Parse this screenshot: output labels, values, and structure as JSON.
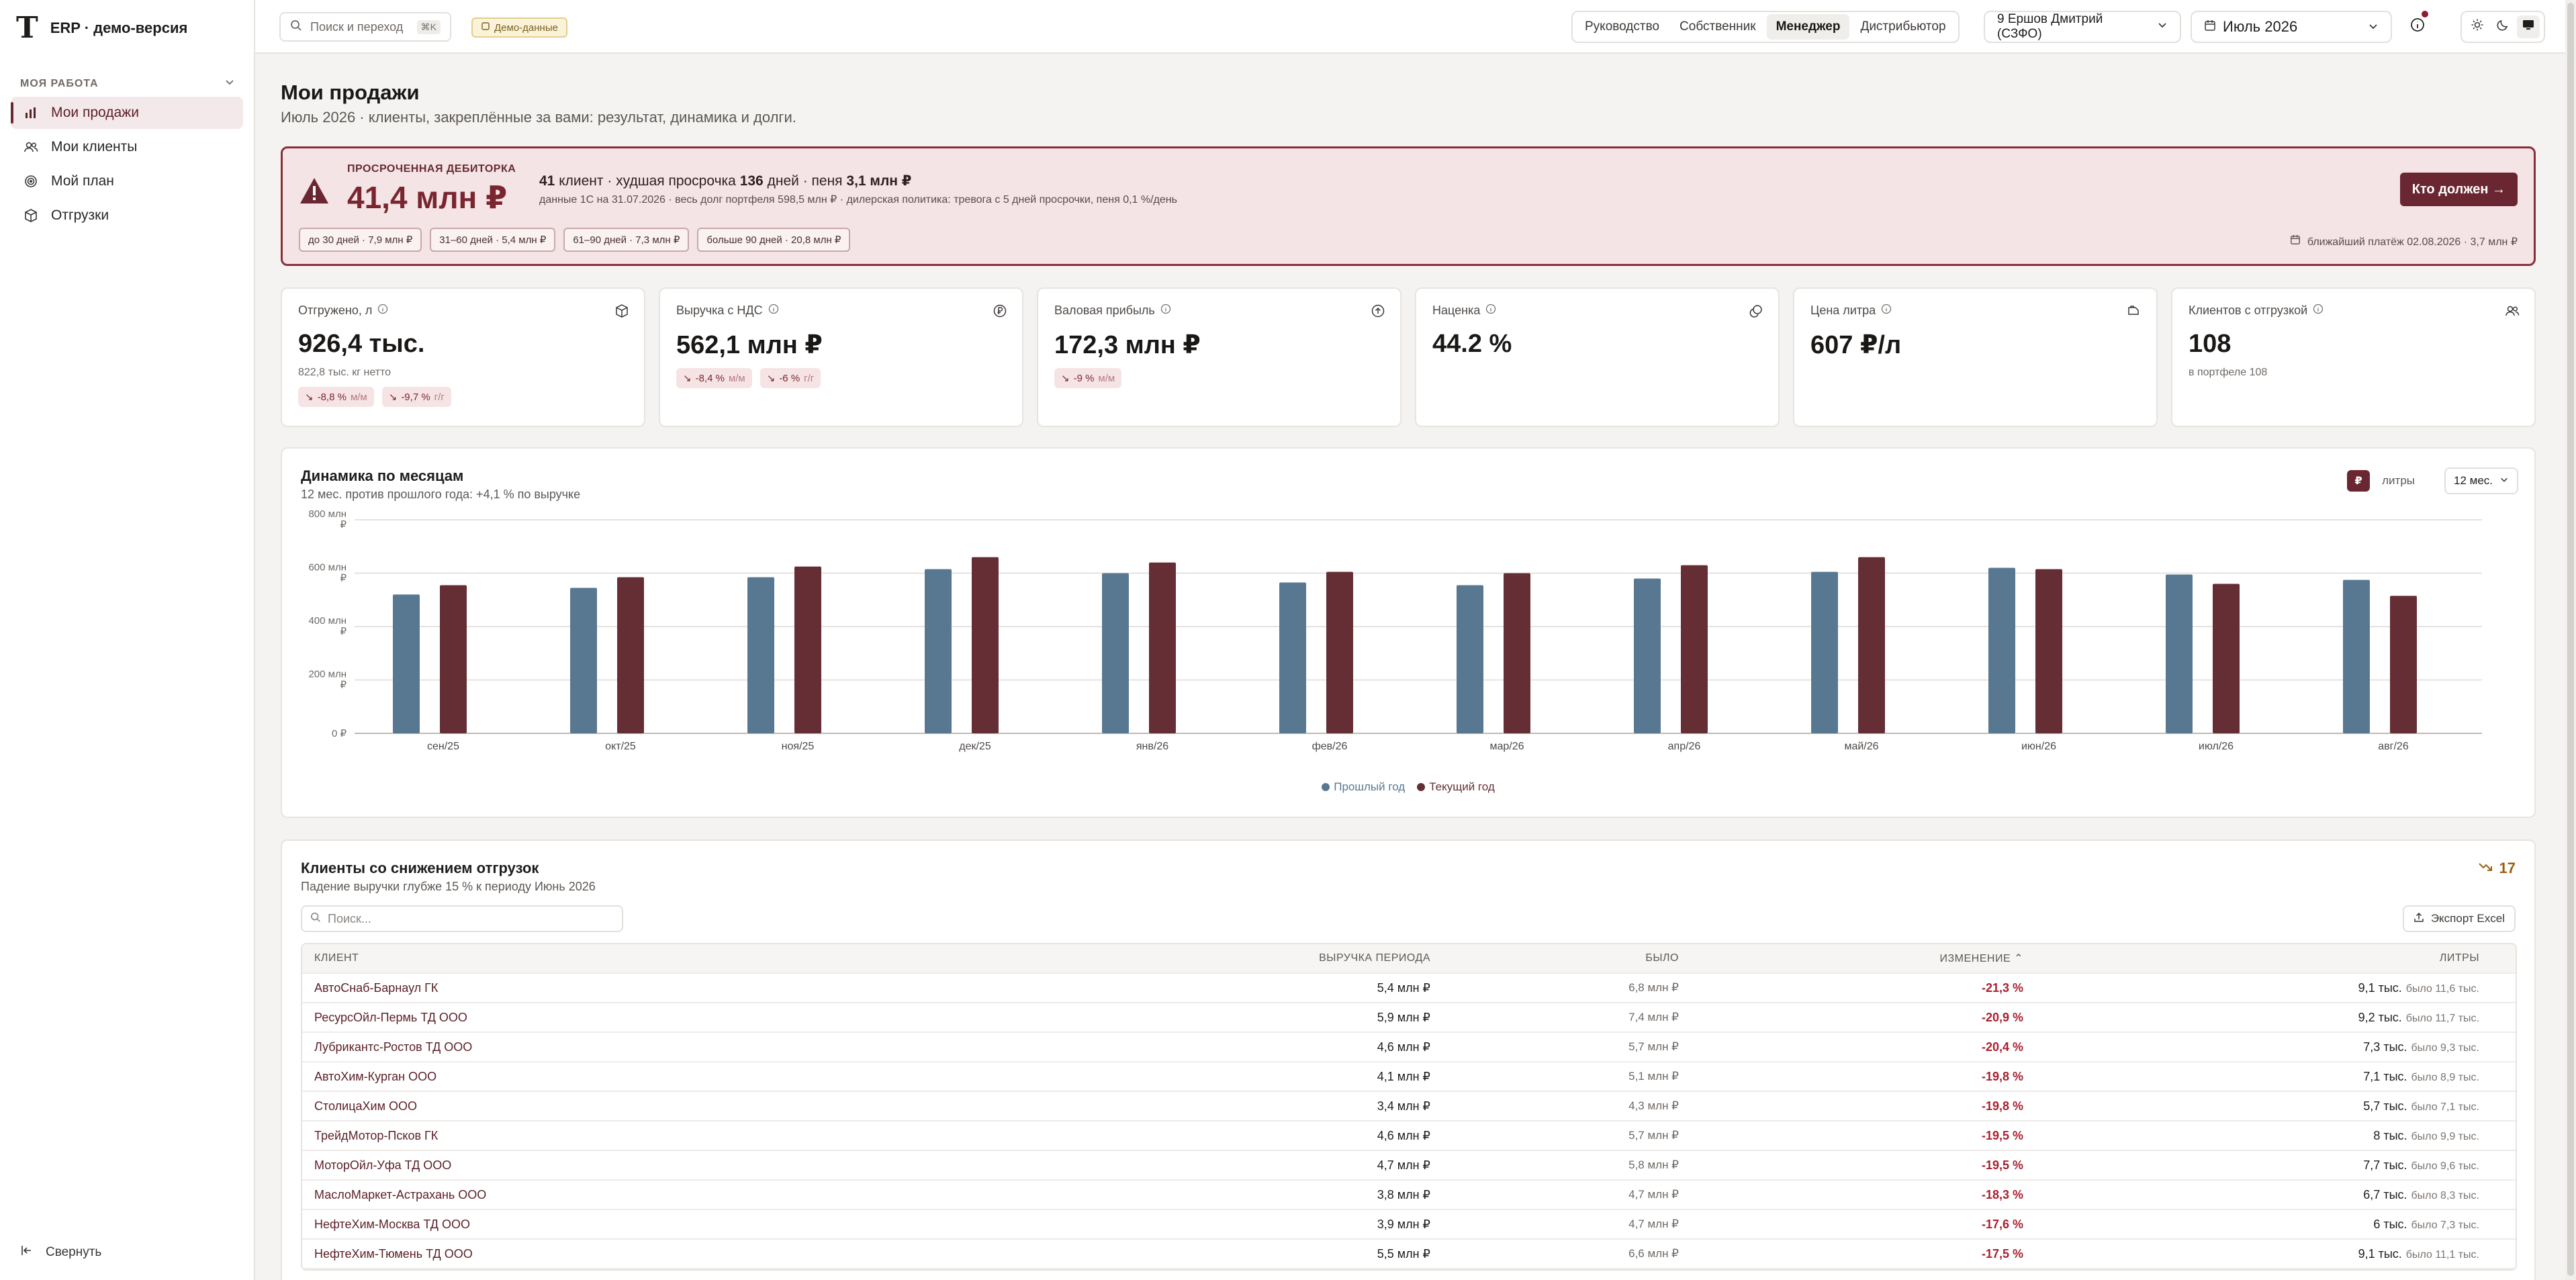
{
  "app": {
    "logo": "T",
    "title": "ERP · демо-версия"
  },
  "sidebar": {
    "section": "МОЯ РАБОТА",
    "items": [
      {
        "label": "Мои продажи",
        "icon": "bar-chart-icon"
      },
      {
        "label": "Мои клиенты",
        "icon": "users-icon"
      },
      {
        "label": "Мой план",
        "icon": "target-icon"
      },
      {
        "label": "Отгрузки",
        "icon": "box-icon"
      }
    ],
    "collapse": "Свернуть"
  },
  "topbar": {
    "search_placeholder": "Поиск и переход",
    "search_kbd": "⌘K",
    "demo_badge": "Демо-данные",
    "roles": [
      "Руководство",
      "Собственник",
      "Менеджер",
      "Дистрибьютор"
    ],
    "active_role": "Менеджер",
    "user": "9 Ершов Дмитрий (СЗФО)",
    "period": "Июль 2026"
  },
  "page": {
    "title": "Мои продажи",
    "subtitle": "Июль 2026 · клиенты, закреплённые за вами: результат, динамика и долги."
  },
  "alert": {
    "label": "ПРОСРОЧЕННАЯ ДЕБИТОРКА",
    "amount": "41,4 млн ₽",
    "clients_num": "41",
    "clients_txt": "клиент · худшая просрочка",
    "days_num": "136",
    "days_txt": "дней · пеня",
    "penalty": "3,1 млн ₽",
    "note": "данные 1С на 31.07.2026 · весь долг портфеля 598,5 млн ₽ · дилерская политика: тревога с 5 дней просрочки, пеня 0,1 %/день",
    "button": "Кто должен →",
    "buckets": [
      "до 30 дней · 7,9 млн ₽",
      "31–60 дней · 5,4 млн ₽",
      "61–90 дней · 7,3 млн ₽",
      "больше 90 дней · 20,8 млн ₽"
    ],
    "next_payment": "ближайший платёж 02.08.2026 · 3,7 млн ₽"
  },
  "kpis": [
    {
      "label": "Отгружено, л",
      "value": "926,4 тыс.",
      "sub": "822,8 тыс. кг нетто",
      "icon": "package-icon",
      "deltas": [
        {
          "v": "-8,8 %",
          "u": "м/м"
        },
        {
          "v": "-9,7 %",
          "u": "г/г"
        }
      ]
    },
    {
      "label": "Выручка с НДС",
      "value": "562,1 млн ₽",
      "sub": "",
      "icon": "currency-icon",
      "deltas": [
        {
          "v": "-8,4 %",
          "u": "м/м"
        },
        {
          "v": "-6 %",
          "u": "г/г"
        }
      ]
    },
    {
      "label": "Валовая прибыль",
      "value": "172,3 млн ₽",
      "sub": "",
      "icon": "arrow-up-circle-icon",
      "deltas": [
        {
          "v": "-9 %",
          "u": "м/м"
        }
      ]
    },
    {
      "label": "Наценка",
      "value": "44.2 %",
      "sub": "",
      "icon": "coins-icon",
      "deltas": []
    },
    {
      "label": "Цена литра",
      "value": "607 ₽/л",
      "sub": "",
      "icon": "fuel-icon",
      "deltas": []
    },
    {
      "label": "Клиентов с отгрузкой",
      "value": "108",
      "sub": "в портфеле 108",
      "icon": "users-icon",
      "deltas": []
    }
  ],
  "chart_section": {
    "title": "Динамика по месяцам",
    "subtitle": "12 мес. против прошлого года: +4,1 % по выручке",
    "toggle_currency": "₽",
    "toggle_liters": "литры",
    "period": "12 мес."
  },
  "chart_data": {
    "type": "bar",
    "categories": [
      "сен/25",
      "окт/25",
      "ноя/25",
      "дек/25",
      "янв/26",
      "фев/26",
      "мар/26",
      "апр/26",
      "май/26",
      "июн/26",
      "июл/26",
      "авг/26"
    ],
    "series": [
      {
        "name": "Прошлый год",
        "color": "#587892",
        "values": [
          520,
          545,
          585,
          615,
          600,
          565,
          555,
          580,
          605,
          620,
          595,
          575
        ]
      },
      {
        "name": "Текущий год",
        "color": "#652e35",
        "values": [
          555,
          585,
          625,
          660,
          640,
          605,
          600,
          630,
          660,
          615,
          560,
          515
        ]
      }
    ],
    "ylim": [
      0,
      800
    ],
    "yticks": [
      "0 ₽",
      "200 млн ₽",
      "400 млн ₽",
      "600 млн ₽",
      "800 млн ₽"
    ],
    "grid": true,
    "legend": "bottom"
  },
  "table_section": {
    "title": "Клиенты со снижением отгрузок",
    "subtitle": "Падение выручки глубже 15 % к периоду Июнь 2026",
    "count": "17",
    "search_placeholder": "Поиск...",
    "export": "Экспорт Excel",
    "headers": [
      "КЛИЕНТ",
      "ВЫРУЧКА ПЕРИОДА",
      "БЫЛО",
      "ИЗМЕНЕНИЕ",
      "ЛИТРЫ"
    ],
    "rows": [
      [
        "АвтоСнаб-Барнаул ГК",
        "5,4 млн ₽",
        "6,8 млн ₽",
        "-21,3 %",
        "9,1 тыс.",
        "было 11,6 тыс."
      ],
      [
        "РесурсОйл-Пермь ТД ООО",
        "5,9 млн ₽",
        "7,4 млн ₽",
        "-20,9 %",
        "9,2 тыс.",
        "было 11,7 тыс."
      ],
      [
        "Лубрикантс-Ростов ТД ООО",
        "4,6 млн ₽",
        "5,7 млн ₽",
        "-20,4 %",
        "7,3 тыс.",
        "было 9,3 тыс."
      ],
      [
        "АвтоХим-Курган ООО",
        "4,1 млн ₽",
        "5,1 млн ₽",
        "-19,8 %",
        "7,1 тыс.",
        "было 8,9 тыс."
      ],
      [
        "СтолицаХим ООО",
        "3,4 млн ₽",
        "4,3 млн ₽",
        "-19,8 %",
        "5,7 тыс.",
        "было 7,1 тыс."
      ],
      [
        "ТрейдМотор-Псков ГК",
        "4,6 млн ₽",
        "5,7 млн ₽",
        "-19,5 %",
        "8 тыс.",
        "было 9,9 тыс."
      ],
      [
        "МоторОйл-Уфа ТД ООО",
        "4,7 млн ₽",
        "5,8 млн ₽",
        "-19,5 %",
        "7,7 тыс.",
        "было 9,6 тыс."
      ],
      [
        "МаслоМаркет-Астрахань ООО",
        "3,8 млн ₽",
        "4,7 млн ₽",
        "-18,3 %",
        "6,7 тыс.",
        "было 8,3 тыс."
      ],
      [
        "НефтеХим-Москва ТД ООО",
        "3,9 млн ₽",
        "4,7 млн ₽",
        "-17,6 %",
        "6 тыс.",
        "было 7,3 тыс."
      ],
      [
        "НефтеХим-Тюмень ТД ООО",
        "5,5 млн ₽",
        "6,6 млн ₽",
        "-17,5 %",
        "9,1 тыс.",
        "было 11,1 тыс."
      ]
    ]
  }
}
